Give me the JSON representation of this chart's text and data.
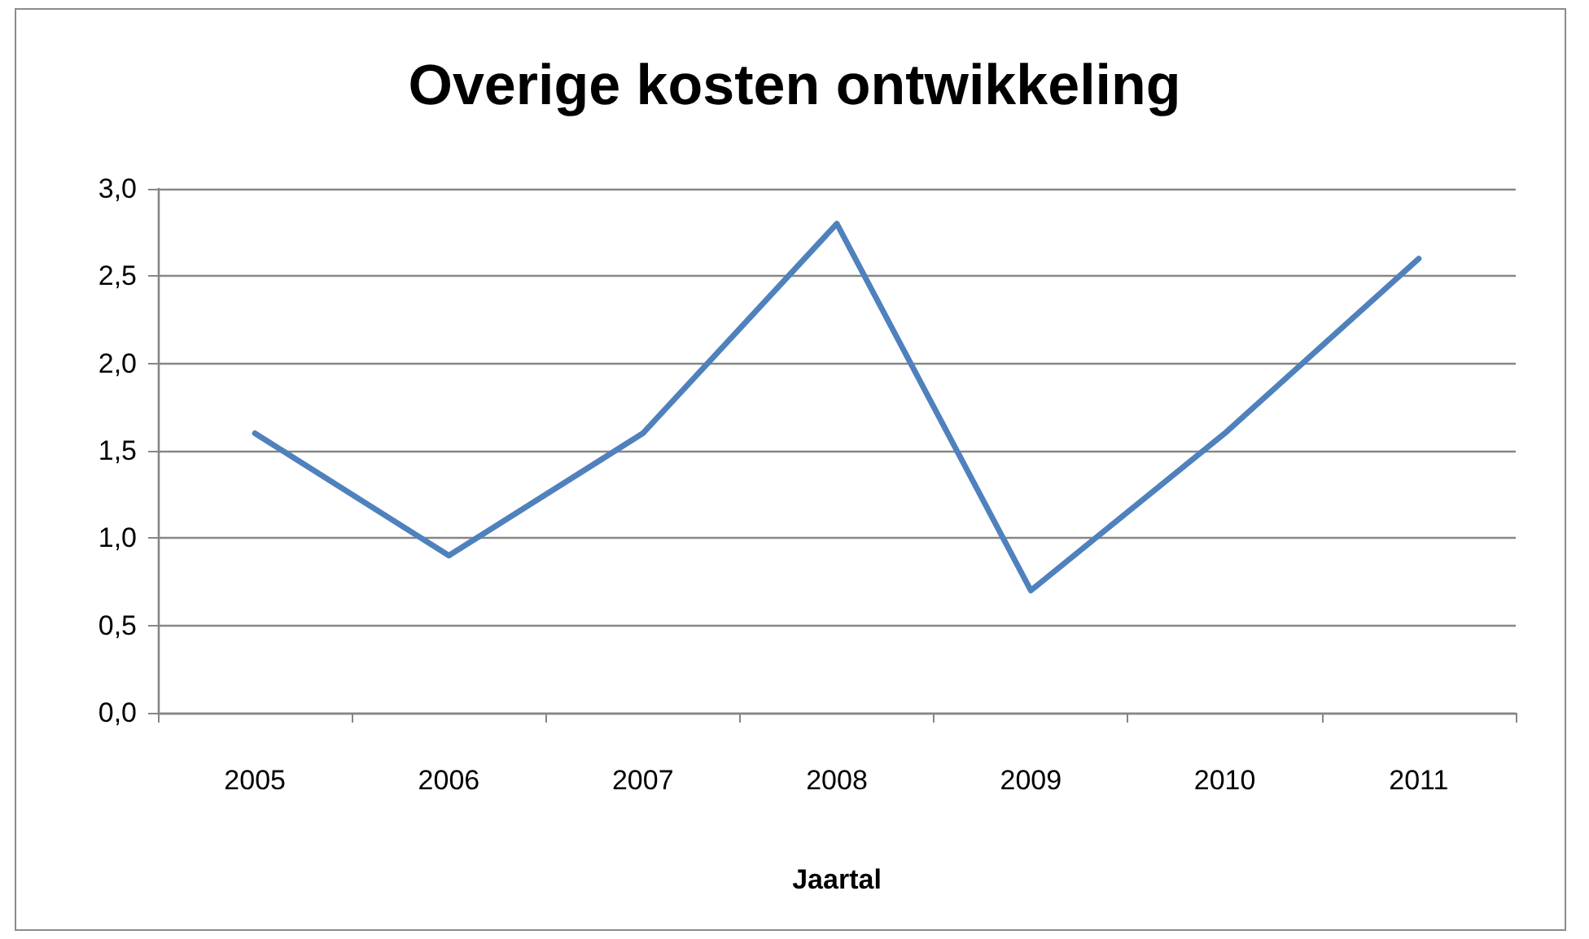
{
  "chart_data": {
    "type": "line",
    "title": "Overige kosten ontwikkeling",
    "xlabel": "Jaartal",
    "categories": [
      "2005",
      "2006",
      "2007",
      "2008",
      "2009",
      "2010",
      "2011"
    ],
    "series": [
      {
        "color": "#4f81bd",
        "values": [
          1.6,
          0.9,
          1.6,
          2.8,
          0.7,
          1.6,
          2.6
        ]
      }
    ],
    "ylim": [
      0,
      3
    ],
    "yticks": [
      {
        "value": 0,
        "label": "0,0"
      },
      {
        "value": 0.5,
        "label": "0,5"
      },
      {
        "value": 1,
        "label": "1,0"
      },
      {
        "value": 1.5,
        "label": "1,5"
      },
      {
        "value": 2,
        "label": "2,0"
      },
      {
        "value": 2.5,
        "label": "2,5"
      },
      {
        "value": 3,
        "label": "3,0"
      }
    ],
    "grid": "y",
    "marker": "none"
  }
}
